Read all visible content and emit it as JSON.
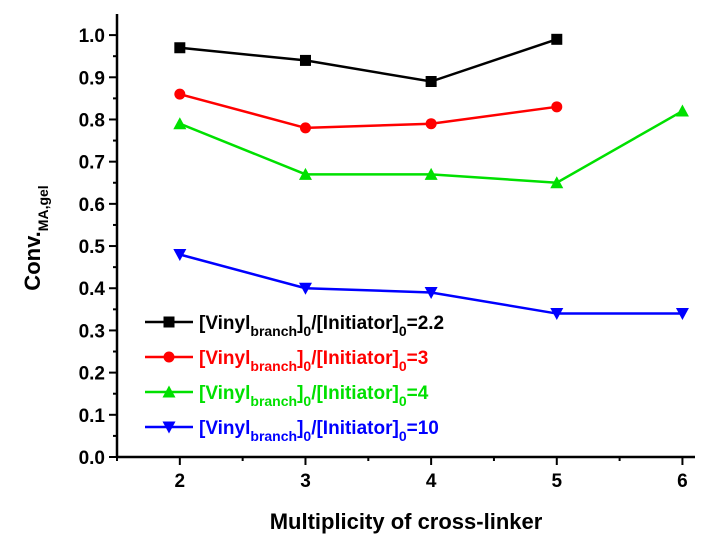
{
  "chart_data": {
    "type": "line",
    "xlabel": "Multiplicity of cross-linker",
    "ylabel": {
      "main": "Conv.",
      "sub": "MA,gel"
    },
    "xlim": [
      1.5,
      6.1
    ],
    "ylim": [
      0.0,
      1.05
    ],
    "xticks": [
      "2",
      "3",
      "4",
      "5",
      "6"
    ],
    "yticks": [
      "0.0",
      "0.1",
      "0.2",
      "0.3",
      "0.4",
      "0.5",
      "0.6",
      "0.7",
      "0.8",
      "0.9",
      "1.0"
    ],
    "legend_position": "bottom-left",
    "series": [
      {
        "name_parts": [
          "[Vinyl",
          "branch",
          "]",
          "0",
          "/[Initiator]",
          "0",
          "=2.2"
        ],
        "color": "#000000",
        "marker": "square",
        "x": [
          2,
          3,
          4,
          5
        ],
        "values": [
          0.97,
          0.94,
          0.89,
          0.99
        ]
      },
      {
        "name_parts": [
          "[Vinyl",
          "branch",
          "]",
          "0",
          "/[Initiator]",
          "0",
          "=3"
        ],
        "color": "#ff0000",
        "marker": "circle",
        "x": [
          2,
          3,
          4,
          5
        ],
        "values": [
          0.86,
          0.78,
          0.79,
          0.83
        ]
      },
      {
        "name_parts": [
          "[Vinyl",
          "branch",
          "]",
          "0",
          "/[Initiator]",
          "0",
          "=4"
        ],
        "color": "#00e000",
        "marker": "triangle-up",
        "x": [
          2,
          3,
          4,
          5,
          6
        ],
        "values": [
          0.79,
          0.67,
          0.67,
          0.65,
          0.82
        ]
      },
      {
        "name_parts": [
          "[Vinyl",
          "branch",
          "]",
          "0",
          "/[Initiator]",
          "0",
          "=10"
        ],
        "color": "#0000ff",
        "marker": "triangle-down",
        "x": [
          2,
          3,
          4,
          5,
          6
        ],
        "values": [
          0.48,
          0.4,
          0.39,
          0.34,
          0.34
        ]
      }
    ]
  }
}
